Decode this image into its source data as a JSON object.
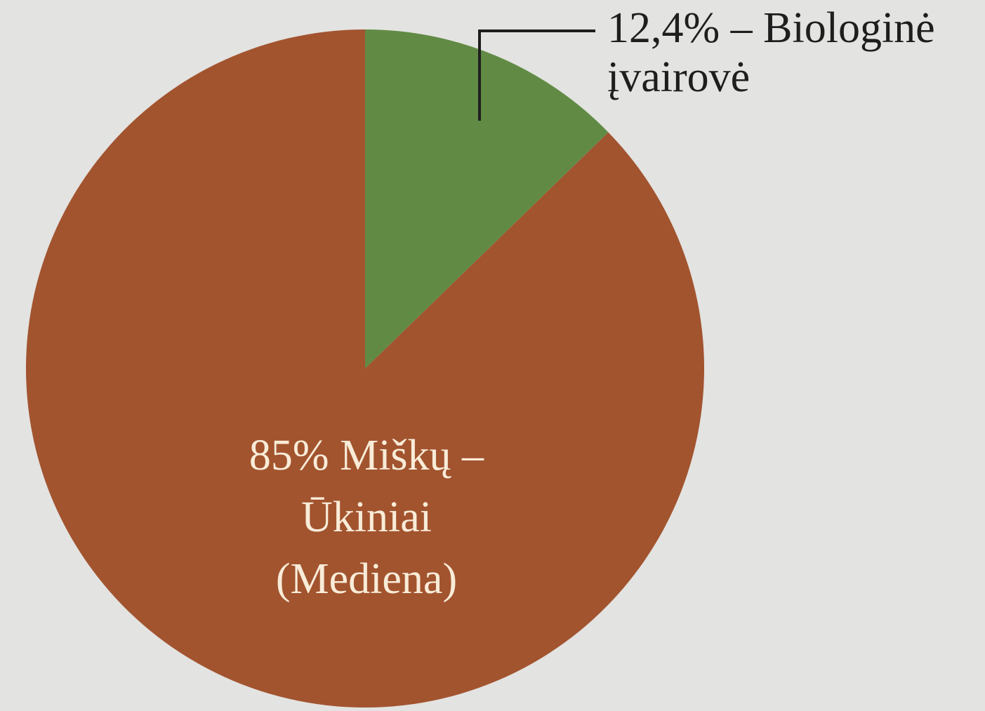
{
  "chart_data": {
    "type": "pie",
    "categories": [
      [
        "12,4% – Biologinė",
        "įvairovė"
      ],
      [
        "85% Miškų –",
        "Ūkiniai",
        "(Mediena)"
      ]
    ],
    "values": [
      12.4,
      85
    ],
    "colors": [
      "#618b45",
      "#a2542f"
    ]
  }
}
